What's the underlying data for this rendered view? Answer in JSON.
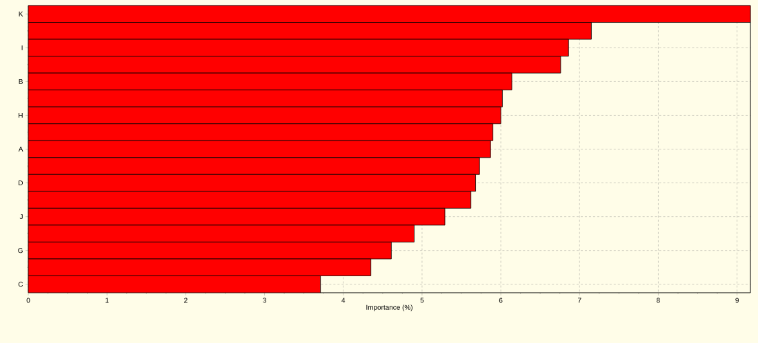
{
  "chart_data": {
    "type": "bar",
    "orientation": "horizontal",
    "xlabel": "Importance (%)",
    "categories": [
      "K",
      null,
      "I",
      null,
      "B",
      null,
      "H",
      null,
      "A",
      null,
      "D",
      null,
      "J",
      null,
      "G",
      null,
      "C"
    ],
    "values": [
      9.17,
      7.15,
      6.86,
      6.76,
      6.14,
      6.02,
      6.0,
      5.9,
      5.87,
      5.73,
      5.68,
      5.62,
      5.29,
      4.9,
      4.61,
      4.35,
      3.71
    ],
    "color": "#ff0000",
    "xlim": [
      0,
      9.17
    ],
    "xticks": [
      0,
      1,
      2,
      3,
      4,
      5,
      6,
      7,
      8,
      9
    ],
    "grid": true
  }
}
